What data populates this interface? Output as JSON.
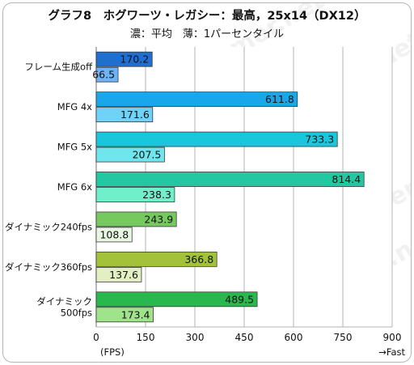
{
  "chart_data": {
    "type": "bar",
    "orientation": "horizontal",
    "title": "グラフ8　ホグワーツ・レガシー：最高，25x14（DX12）",
    "subtitle": "濃：平均　薄：1パーセンタイル",
    "categories": [
      "フレーム生成off",
      "MFG 4x",
      "MFG 5x",
      "MFG 6x",
      "ダイナミック240fps",
      "ダイナミック360fps",
      "ダイナミック\n500fps"
    ],
    "series": [
      {
        "name": "平均",
        "values": [
          170.2,
          611.8,
          733.3,
          814.4,
          243.9,
          366.8,
          489.5
        ]
      },
      {
        "name": "1パーセンタイル",
        "values": [
          66.5,
          171.6,
          207.5,
          238.3,
          108.8,
          137.6,
          173.4
        ]
      }
    ],
    "value_labels": {
      "avg": [
        "170.2",
        "611.8",
        "733.3",
        "814.4",
        "243.9",
        "366.8",
        "489.5"
      ],
      "low": [
        "66.5",
        "171.6",
        "207.5",
        "238.3",
        "108.8",
        "137.6",
        "173.4"
      ]
    },
    "colors": {
      "avg": [
        "#1f6fd1",
        "#1aa6ea",
        "#19c6dc",
        "#23c8a2",
        "#76c95f",
        "#a3c23a",
        "#28b84e"
      ],
      "low": [
        "#6fb3f5",
        "#6fd2f6",
        "#6fe6ee",
        "#6ff0cb",
        "#e9f6e1",
        "#e3efc2",
        "#9fe38a"
      ]
    },
    "x_ticks": [
      "0",
      "150",
      "300",
      "450",
      "600",
      "750",
      "900"
    ],
    "xlim": [
      0,
      900
    ],
    "xlabel": "(FPS)",
    "direction_label": "→Fast",
    "grid": true,
    "watermark": "4Gamer.net"
  }
}
